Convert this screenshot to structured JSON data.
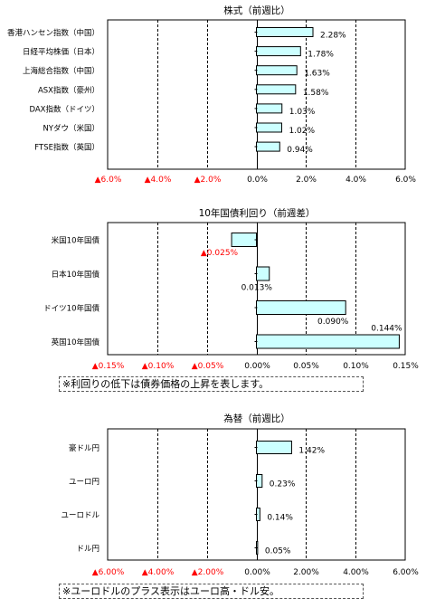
{
  "chart_data": [
    {
      "type": "bar",
      "orientation": "horizontal",
      "title": "株式（前週比）",
      "categories": [
        "香港ハンセン指数（中国）",
        "日経平均株価（日本）",
        "上海総合指数（中国）",
        "ASX指数（豪州）",
        "DAX指数（ドイツ）",
        "NYダウ（米国）",
        "FTSE指数（英国）"
      ],
      "values": [
        2.28,
        1.78,
        1.63,
        1.58,
        1.03,
        1.02,
        0.94
      ],
      "value_labels": [
        "2.28%",
        "1.78%",
        "1.63%",
        "1.58%",
        "1.03%",
        "1.02%",
        "0.94%"
      ],
      "xlim": [
        -6.0,
        6.0
      ],
      "ticks": [
        -6,
        -4,
        -2,
        0,
        2,
        4,
        6
      ],
      "tick_labels": [
        "▲6.0%",
        "▲4.0%",
        "▲2.0%",
        "0.0%",
        "2.0%",
        "4.0%",
        "6.0%"
      ],
      "grid": "vertical dashed",
      "bar_color": "#ccffff"
    },
    {
      "type": "bar",
      "orientation": "horizontal",
      "title": "10年国債利回り（前週差）",
      "categories": [
        "米国10年国債",
        "日本10年国債",
        "ドイツ10年国債",
        "英国10年国債"
      ],
      "values": [
        -0.025,
        0.013,
        0.09,
        0.144
      ],
      "value_labels": [
        "▲0.025%",
        "0.013%",
        "0.090%",
        "0.144%"
      ],
      "xlim": [
        -0.15,
        0.15
      ],
      "ticks": [
        -0.15,
        -0.1,
        -0.05,
        0,
        0.05,
        0.1,
        0.15
      ],
      "tick_labels": [
        "▲0.15%",
        "▲0.10%",
        "▲0.05%",
        "0.00%",
        "0.05%",
        "0.10%",
        "0.15%"
      ],
      "grid": "vertical dashed",
      "bar_color": "#ccffff"
    },
    {
      "type": "bar",
      "orientation": "horizontal",
      "title": "為替（前週比）",
      "categories": [
        "豪ドル円",
        "ユーロ円",
        "ユーロドル",
        "ドル円"
      ],
      "values": [
        1.42,
        0.23,
        0.14,
        0.05
      ],
      "value_labels": [
        "1.42%",
        "0.23%",
        "0.14%",
        "0.05%"
      ],
      "xlim": [
        -6.0,
        6.0
      ],
      "ticks": [
        -6,
        -4,
        -2,
        0,
        2,
        4,
        6
      ],
      "tick_labels": [
        "▲6.00%",
        "▲4.00%",
        "▲2.00%",
        "0.00%",
        "2.00%",
        "4.00%",
        "6.00%"
      ],
      "grid": "vertical dashed",
      "bar_color": "#ccffff"
    }
  ],
  "notes": {
    "bonds": "※利回りの低下は債券価格の上昇を表します。",
    "fx": "※ユーロドルのプラス表示はユーロ高・ドル安。"
  },
  "colors": {
    "negative_label": "#ff0000",
    "axis": "#000000",
    "bar_fill": "#ccffff",
    "bar_stroke": "#000000"
  }
}
